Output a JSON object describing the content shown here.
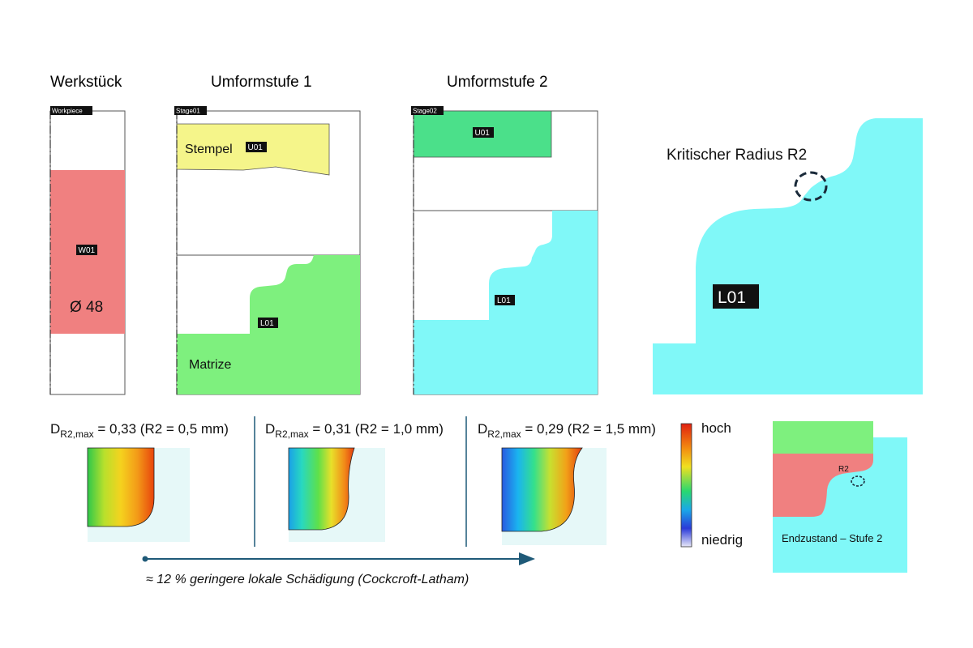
{
  "headings": {
    "workpiece": "Werkstück",
    "stage1": "Umformstufe 1",
    "stage2": "Umformstufe 2"
  },
  "panels": {
    "workpiece": {
      "tag": "Workpiece",
      "part_label": "W01",
      "diameter": "Ø 48"
    },
    "stage1": {
      "tag": "Stage01",
      "punch_label": "U01",
      "punch_name": "Stempel",
      "die_label": "L01",
      "die_name": "Matrize"
    },
    "stage2": {
      "tag": "Stage02",
      "punch_label": "U01",
      "die_label": "L01"
    },
    "detail": {
      "label": "L01",
      "annotation": "Kritischer Radius R2"
    }
  },
  "damage": [
    {
      "prefix": "D",
      "sub": "R2,max",
      "text": " = 0,33 (R2 = 0,5 mm)"
    },
    {
      "prefix": "D",
      "sub": "R2,max",
      "text": " = 0,31 (R2 = 1,0 mm)"
    },
    {
      "prefix": "D",
      "sub": "R2,max",
      "text": " = 0,29 (R2 = 1,5 mm)"
    }
  ],
  "arrow_caption": "≈ 12 % geringere lokale Schädigung (Cockcroft-Latham)",
  "colorbar": {
    "high": "hoch",
    "low": "niedrig"
  },
  "final_state": {
    "r2": "R2",
    "caption": "Endzustand – Stufe 2"
  },
  "colors": {
    "workpiece": "#f08080",
    "punch1": "#f5f58a",
    "die1": "#7ef07e",
    "punch2": "#4be08a",
    "die2": "#80f8f8",
    "arrow": "#1f5a78"
  }
}
